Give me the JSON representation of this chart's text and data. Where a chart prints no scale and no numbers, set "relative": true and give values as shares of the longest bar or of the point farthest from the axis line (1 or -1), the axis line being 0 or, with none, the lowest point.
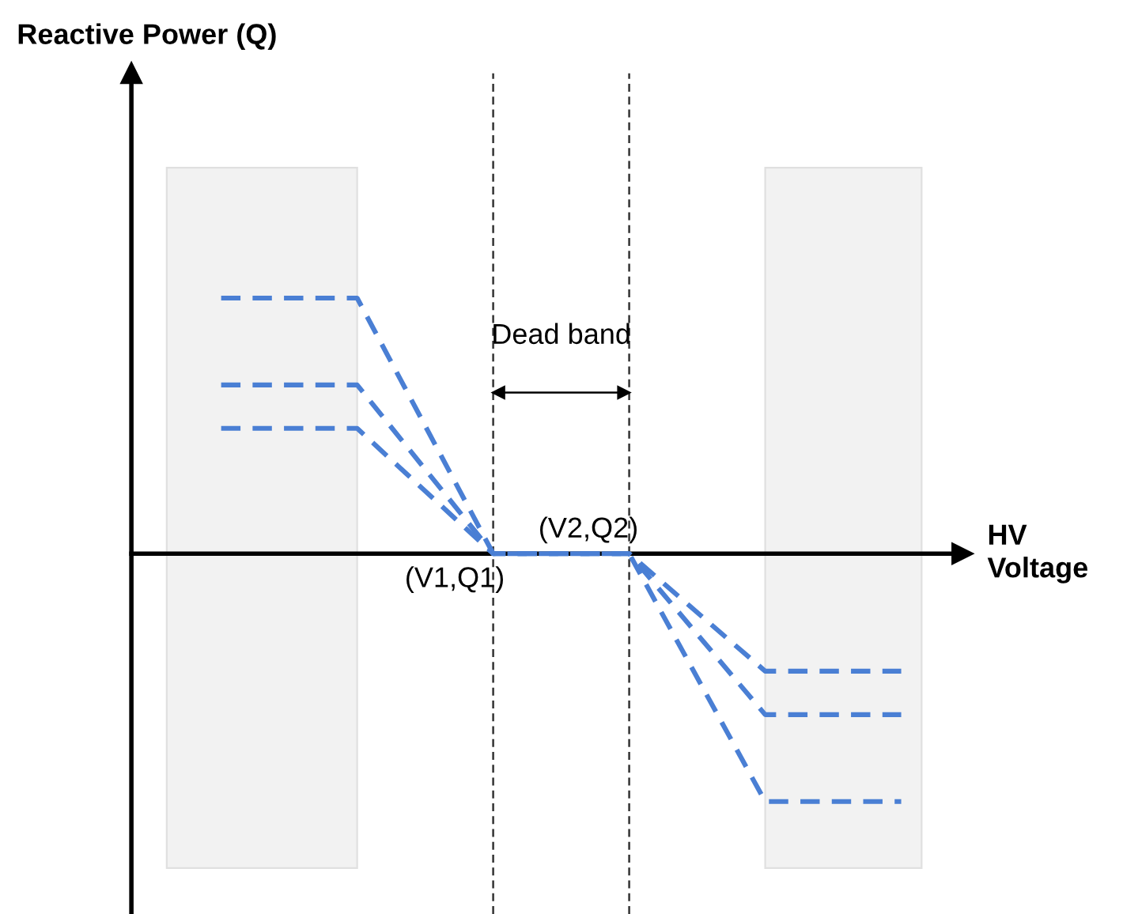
{
  "chart_data": {
    "type": "line",
    "relative": true,
    "xlabel": "HV\nVoltage",
    "categories": [
      null,
      null,
      null,
      null,
      null,
      null
    ],
    "series": [
      {
        "color": "#4a7fd4",
        "values": [
          1,
          1,
          0,
          0,
          -0.97,
          -0.97
        ]
      },
      {
        "color": "#4a7fd4",
        "values": [
          0.66,
          0.66,
          0,
          0,
          -0.63,
          -0.63
        ]
      },
      {
        "color": "#4a7fd4",
        "values": [
          0.49,
          0.49,
          0,
          0,
          -0.46,
          -0.46
        ]
      }
    ],
    "line_style": "dashed",
    "marker": "none",
    "annotations": [
      "Dead band",
      "(V1,Q1)",
      "(V2,Q2)",
      "Reactive Power (Q)"
    ]
  }
}
